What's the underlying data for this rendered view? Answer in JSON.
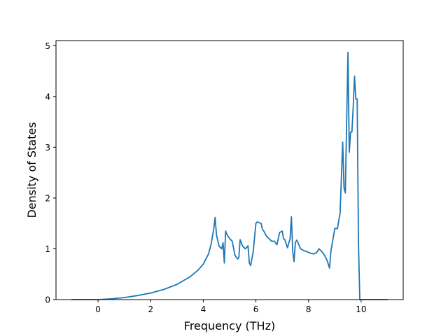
{
  "chart_data": {
    "type": "line",
    "title": "",
    "xlabel": "Frequency (THz)",
    "ylabel": "Density of States",
    "xlim": [
      -1.6,
      11.6
    ],
    "ylim": [
      0,
      5.1
    ],
    "xticks": [
      0,
      2,
      4,
      6,
      8,
      10
    ],
    "yticks": [
      0,
      1,
      2,
      3,
      4,
      5
    ],
    "grid": false,
    "legend": "none",
    "line_color": "#1f77b4",
    "series": [
      {
        "x": [
          -1.0,
          -0.5,
          0.0,
          0.5,
          1.0,
          1.5,
          2.0,
          2.5,
          3.0,
          3.5,
          3.8,
          4.0,
          4.2,
          4.3,
          4.4,
          4.45,
          4.5,
          4.6,
          4.7,
          4.75,
          4.8,
          4.85,
          4.9,
          5.0,
          5.1,
          5.2,
          5.3,
          5.35,
          5.4,
          5.5,
          5.6,
          5.7,
          5.75,
          5.8,
          5.9,
          6.0,
          6.05,
          6.1,
          6.2,
          6.25,
          6.3,
          6.4,
          6.5,
          6.6,
          6.7,
          6.8,
          6.9,
          7.0,
          7.05,
          7.1,
          7.2,
          7.3,
          7.35,
          7.4,
          7.45,
          7.5,
          7.55,
          7.6,
          7.7,
          7.8,
          7.9,
          8.0,
          8.1,
          8.2,
          8.3,
          8.4,
          8.5,
          8.6,
          8.7,
          8.8,
          8.85,
          8.9,
          9.0,
          9.1,
          9.2,
          9.3,
          9.35,
          9.4,
          9.45,
          9.5,
          9.55,
          9.6,
          9.65,
          9.7,
          9.75,
          9.8,
          9.85,
          9.9,
          9.95,
          10.0,
          10.05,
          10.1,
          10.2,
          10.5,
          11.0
        ],
        "y": [
          0,
          0,
          0.0,
          0.015,
          0.04,
          0.08,
          0.13,
          0.2,
          0.3,
          0.45,
          0.58,
          0.7,
          0.9,
          1.1,
          1.4,
          1.62,
          1.28,
          1.05,
          1.0,
          1.12,
          0.72,
          1.35,
          1.28,
          1.2,
          1.15,
          0.88,
          0.8,
          0.82,
          1.18,
          1.05,
          1.0,
          1.06,
          0.72,
          0.67,
          0.95,
          1.5,
          1.53,
          1.52,
          1.5,
          1.38,
          1.35,
          1.25,
          1.2,
          1.15,
          1.15,
          1.08,
          1.32,
          1.35,
          1.2,
          1.18,
          1.02,
          1.2,
          1.63,
          0.95,
          0.75,
          1.12,
          1.17,
          1.12,
          1.0,
          0.97,
          0.95,
          0.93,
          0.91,
          0.9,
          0.92,
          1.0,
          0.95,
          0.88,
          0.78,
          0.62,
          0.95,
          1.1,
          1.4,
          1.4,
          1.7,
          3.1,
          2.2,
          2.1,
          3.5,
          4.87,
          2.9,
          3.3,
          3.3,
          3.8,
          4.4,
          3.95,
          3.95,
          1.1,
          0.0,
          0.0,
          0.0,
          0.0,
          0.0,
          0.0,
          0.0
        ]
      }
    ]
  }
}
